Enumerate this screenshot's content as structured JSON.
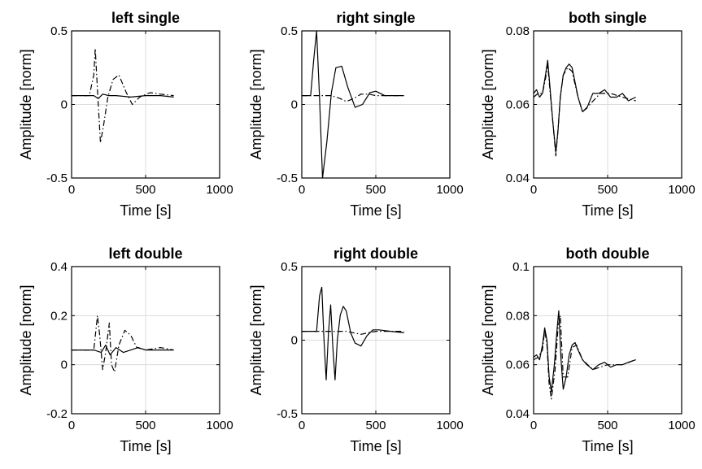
{
  "chart_data": [
    {
      "type": "line",
      "title": "left single",
      "xlabel": "Time [s]",
      "ylabel": "Amplitude [norm]",
      "xlim": [
        0,
        1000
      ],
      "ylim": [
        -0.5,
        0.5
      ],
      "xticks": [
        "0",
        "500",
        "1000"
      ],
      "yticks": [
        "-0.5",
        "0",
        "0.5"
      ],
      "grid": true,
      "series": [
        {
          "style": "solid",
          "x": [
            0,
            100,
            150,
            180,
            210,
            250,
            300,
            400,
            500,
            600,
            690
          ],
          "y": [
            0.06,
            0.06,
            0.06,
            0.04,
            0.07,
            0.06,
            0.06,
            0.05,
            0.06,
            0.06,
            0.05
          ]
        },
        {
          "style": "dashdot",
          "x": [
            0,
            120,
            150,
            160,
            175,
            195,
            215,
            245,
            280,
            320,
            370,
            410,
            460,
            530,
            600,
            690
          ],
          "y": [
            0.06,
            0.06,
            0.2,
            0.38,
            0.1,
            -0.26,
            -0.15,
            0.05,
            0.17,
            0.2,
            0.08,
            0.0,
            0.05,
            0.08,
            0.07,
            0.06
          ]
        }
      ]
    },
    {
      "type": "line",
      "title": "right single",
      "xlabel": "Time [s]",
      "ylabel": "Amplitude [norm]",
      "xlim": [
        0,
        1000
      ],
      "ylim": [
        -0.5,
        0.5
      ],
      "xticks": [
        "0",
        "500",
        "1000"
      ],
      "yticks": [
        "-0.5",
        "0",
        "0.5"
      ],
      "grid": true,
      "series": [
        {
          "style": "solid",
          "x": [
            0,
            60,
            80,
            100,
            120,
            140,
            170,
            200,
            230,
            270,
            310,
            360,
            410,
            460,
            500,
            560,
            620,
            690
          ],
          "y": [
            0.06,
            0.06,
            0.3,
            0.5,
            0.05,
            -0.5,
            -0.25,
            0.08,
            0.25,
            0.26,
            0.12,
            -0.02,
            0.0,
            0.08,
            0.09,
            0.06,
            0.06,
            0.06
          ]
        },
        {
          "style": "dashdot",
          "x": [
            0,
            100,
            200,
            260,
            300,
            350,
            400,
            450,
            500,
            600,
            690
          ],
          "y": [
            0.06,
            0.06,
            0.06,
            0.04,
            0.02,
            0.04,
            0.07,
            0.07,
            0.06,
            0.06,
            0.06
          ]
        }
      ]
    },
    {
      "type": "line",
      "title": "both single",
      "xlabel": "Time [s]",
      "ylabel": "Amplitude [norm]",
      "xlim": [
        0,
        1000
      ],
      "ylim": [
        0.04,
        0.08
      ],
      "xticks": [
        "0",
        "500",
        "1000"
      ],
      "yticks": [
        "0.04",
        "0.06",
        "0.08"
      ],
      "grid": true,
      "series": [
        {
          "style": "solid",
          "x": [
            0,
            20,
            40,
            60,
            80,
            95,
            110,
            130,
            150,
            165,
            180,
            200,
            220,
            240,
            260,
            280,
            300,
            330,
            360,
            400,
            440,
            480,
            520,
            560,
            600,
            640,
            690
          ],
          "y": [
            0.063,
            0.064,
            0.062,
            0.063,
            0.068,
            0.072,
            0.065,
            0.055,
            0.047,
            0.053,
            0.062,
            0.068,
            0.07,
            0.071,
            0.07,
            0.066,
            0.062,
            0.058,
            0.059,
            0.063,
            0.063,
            0.064,
            0.062,
            0.062,
            0.063,
            0.061,
            0.062
          ]
        },
        {
          "style": "dashdot",
          "x": [
            0,
            30,
            60,
            80,
            95,
            110,
            130,
            150,
            165,
            180,
            200,
            230,
            260,
            300,
            330,
            380,
            450,
            520,
            600,
            690
          ],
          "y": [
            0.062,
            0.063,
            0.063,
            0.067,
            0.071,
            0.064,
            0.055,
            0.046,
            0.053,
            0.062,
            0.068,
            0.07,
            0.069,
            0.062,
            0.058,
            0.06,
            0.063,
            0.063,
            0.062,
            0.061
          ]
        }
      ]
    },
    {
      "type": "line",
      "title": "left double",
      "xlabel": "Time [s]",
      "ylabel": "Amplitude [norm]",
      "xlim": [
        0,
        1000
      ],
      "ylim": [
        -0.2,
        0.4
      ],
      "xticks": [
        "0",
        "500",
        "1000"
      ],
      "yticks": [
        "-0.2",
        "0",
        "0.2",
        "0.4"
      ],
      "grid": true,
      "series": [
        {
          "style": "solid",
          "x": [
            0,
            150,
            200,
            230,
            260,
            300,
            350,
            400,
            450,
            500,
            600,
            690
          ],
          "y": [
            0.06,
            0.06,
            0.05,
            0.08,
            0.04,
            0.07,
            0.05,
            0.06,
            0.07,
            0.06,
            0.06,
            0.06
          ]
        },
        {
          "style": "dashdot",
          "x": [
            0,
            150,
            175,
            190,
            210,
            230,
            255,
            270,
            290,
            320,
            360,
            400,
            440,
            500,
            600,
            690
          ],
          "y": [
            0.06,
            0.06,
            0.2,
            0.12,
            -0.02,
            0.05,
            0.17,
            0.0,
            -0.03,
            0.08,
            0.14,
            0.12,
            0.07,
            0.06,
            0.07,
            0.06
          ]
        }
      ]
    },
    {
      "type": "line",
      "title": "right double",
      "xlabel": "Time [s]",
      "ylabel": "Amplitude [norm]",
      "xlim": [
        0,
        1000
      ],
      "ylim": [
        -0.5,
        0.5
      ],
      "xticks": [
        "0",
        "500",
        "1000"
      ],
      "yticks": [
        "-0.5",
        "0",
        "0.5"
      ],
      "grid": true,
      "series": [
        {
          "style": "solid",
          "x": [
            0,
            100,
            120,
            135,
            150,
            165,
            180,
            195,
            210,
            225,
            240,
            260,
            280,
            300,
            330,
            360,
            400,
            440,
            480,
            520,
            600,
            690
          ],
          "y": [
            0.06,
            0.06,
            0.3,
            0.36,
            0.0,
            -0.27,
            0.05,
            0.24,
            -0.05,
            -0.27,
            0.0,
            0.17,
            0.23,
            0.2,
            0.05,
            -0.02,
            -0.04,
            0.03,
            0.07,
            0.07,
            0.06,
            0.05
          ]
        },
        {
          "style": "dashdot",
          "x": [
            0,
            100,
            200,
            300,
            400,
            450,
            500,
            600,
            690
          ],
          "y": [
            0.06,
            0.06,
            0.06,
            0.06,
            0.04,
            0.05,
            0.06,
            0.06,
            0.06
          ]
        }
      ]
    },
    {
      "type": "line",
      "title": "both double",
      "xlabel": "Time [s]",
      "ylabel": "Amplitude [norm]",
      "xlim": [
        0,
        1000
      ],
      "ylim": [
        0.04,
        0.1
      ],
      "xticks": [
        "0",
        "500",
        "1000"
      ],
      "yticks": [
        "0.04",
        "0.06",
        "0.08",
        "0.1"
      ],
      "grid": true,
      "series": [
        {
          "style": "solid",
          "x": [
            0,
            20,
            40,
            60,
            75,
            90,
            105,
            120,
            140,
            155,
            170,
            185,
            200,
            220,
            240,
            260,
            280,
            300,
            330,
            360,
            400,
            440,
            480,
            520,
            560,
            600,
            640,
            690
          ],
          "y": [
            0.063,
            0.064,
            0.062,
            0.068,
            0.075,
            0.07,
            0.055,
            0.049,
            0.06,
            0.072,
            0.082,
            0.062,
            0.05,
            0.055,
            0.064,
            0.068,
            0.069,
            0.066,
            0.062,
            0.06,
            0.058,
            0.06,
            0.061,
            0.059,
            0.06,
            0.06,
            0.061,
            0.062
          ]
        },
        {
          "style": "dashdot",
          "x": [
            0,
            30,
            60,
            75,
            90,
            105,
            120,
            145,
            165,
            180,
            200,
            230,
            260,
            290,
            330,
            400,
            500,
            600,
            690
          ],
          "y": [
            0.062,
            0.063,
            0.066,
            0.074,
            0.068,
            0.052,
            0.046,
            0.058,
            0.075,
            0.08,
            0.055,
            0.055,
            0.067,
            0.068,
            0.062,
            0.058,
            0.06,
            0.06,
            0.062
          ]
        }
      ]
    }
  ]
}
